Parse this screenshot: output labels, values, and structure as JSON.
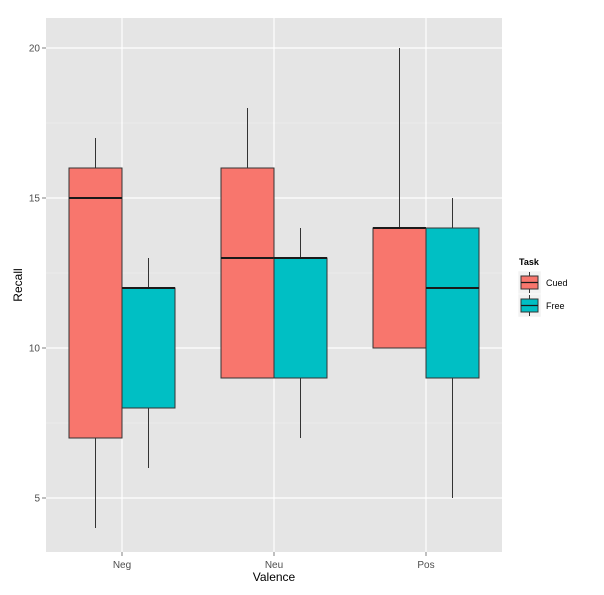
{
  "chart_data": {
    "type": "boxplot",
    "xlabel": "Valence",
    "ylabel": "Recall",
    "categories": [
      "Neg",
      "Neu",
      "Pos"
    ],
    "yticks": [
      5,
      10,
      15,
      20
    ],
    "ylim": [
      3.2,
      21.0
    ],
    "grid": true,
    "legend": {
      "title": "Task",
      "position": "right",
      "items": [
        {
          "label": "Cued",
          "color": "#F8766D"
        },
        {
          "label": "Free",
          "color": "#00BFC4"
        }
      ]
    },
    "series": [
      {
        "name": "Cued",
        "color": "#F8766D",
        "boxes": [
          {
            "category": "Neg",
            "min": 4,
            "q1": 7,
            "median": 15,
            "q3": 16,
            "max": 17
          },
          {
            "category": "Neu",
            "min": 9,
            "q1": 9,
            "median": 13,
            "q3": 16,
            "max": 18
          },
          {
            "category": "Pos",
            "min": 10,
            "q1": 10,
            "median": 14,
            "q3": 14,
            "max": 20
          }
        ]
      },
      {
        "name": "Free",
        "color": "#00BFC4",
        "boxes": [
          {
            "category": "Neg",
            "min": 6,
            "q1": 8,
            "median": 12,
            "q3": 12,
            "max": 13
          },
          {
            "category": "Neu",
            "min": 7,
            "q1": 9,
            "median": 13,
            "q3": 13,
            "max": 14
          },
          {
            "category": "Pos",
            "min": 5,
            "q1": 9,
            "median": 12,
            "q3": 14,
            "max": 15
          }
        ]
      }
    ]
  }
}
